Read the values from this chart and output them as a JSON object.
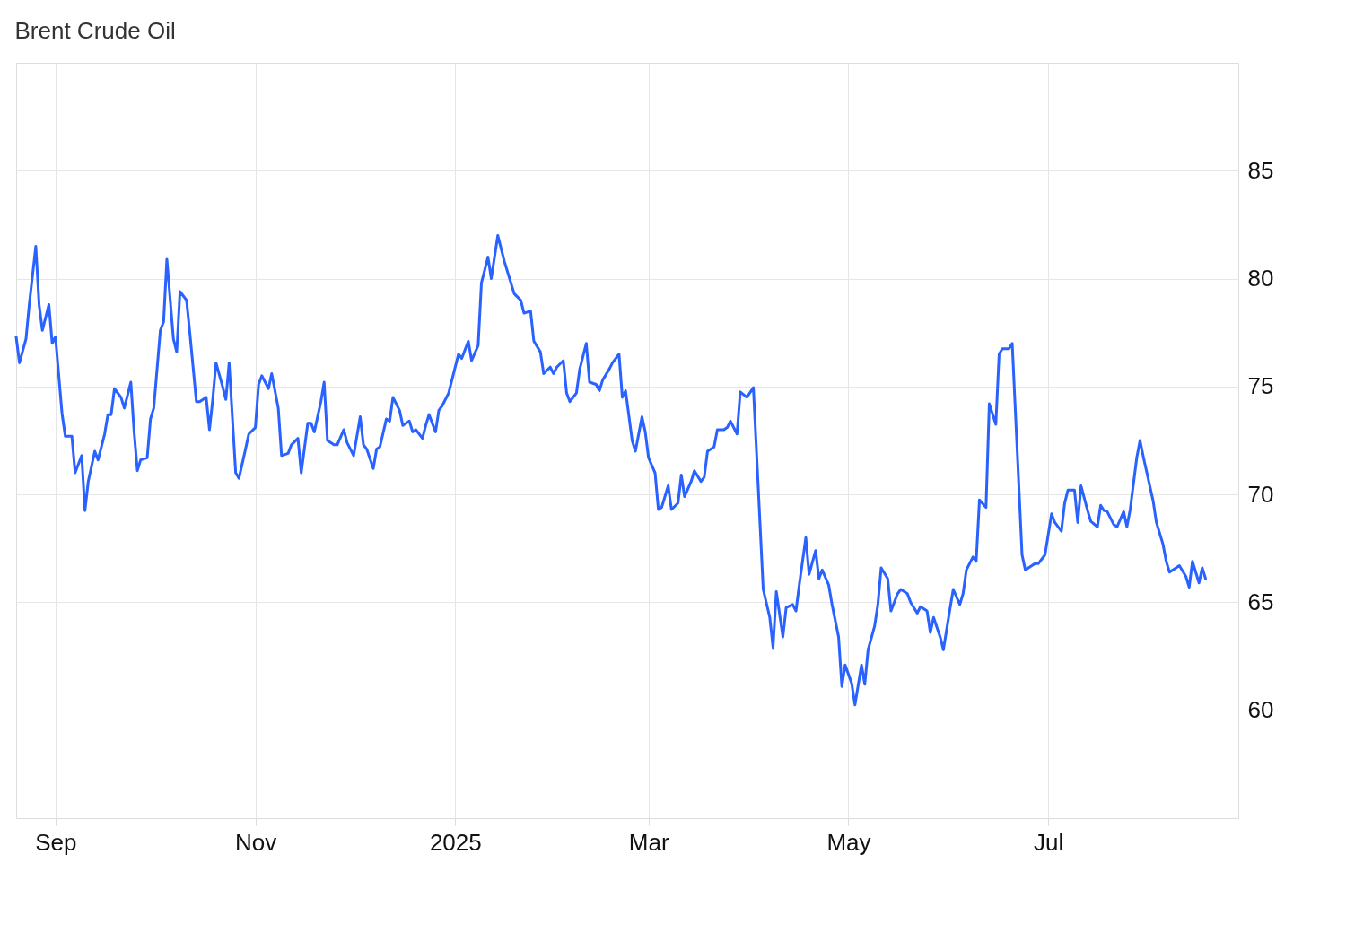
{
  "chart_data": {
    "type": "line",
    "title": "Brent Crude Oil",
    "x": [
      "2024-08-20",
      "2024-08-21",
      "2024-08-23",
      "2024-08-24",
      "2024-08-26",
      "2024-08-27",
      "2024-08-28",
      "2024-08-30",
      "2024-08-31",
      "2024-09-01",
      "2024-09-03",
      "2024-09-04",
      "2024-09-06",
      "2024-09-07",
      "2024-09-09",
      "2024-09-10",
      "2024-09-11",
      "2024-09-13",
      "2024-09-14",
      "2024-09-16",
      "2024-09-17",
      "2024-09-18",
      "2024-09-19",
      "2024-09-21",
      "2024-09-22",
      "2024-09-24",
      "2024-09-25",
      "2024-09-26",
      "2024-09-27",
      "2024-09-29",
      "2024-09-30",
      "2024-10-01",
      "2024-10-03",
      "2024-10-04",
      "2024-10-05",
      "2024-10-07",
      "2024-10-08",
      "2024-10-09",
      "2024-10-11",
      "2024-10-12",
      "2024-10-14",
      "2024-10-15",
      "2024-10-17",
      "2024-10-18",
      "2024-10-19",
      "2024-10-20",
      "2024-10-22",
      "2024-10-23",
      "2024-10-24",
      "2024-10-26",
      "2024-10-27",
      "2024-10-29",
      "2024-10-30",
      "2024-11-01",
      "2024-11-02",
      "2024-11-03",
      "2024-11-05",
      "2024-11-06",
      "2024-11-08",
      "2024-11-09",
      "2024-11-11",
      "2024-11-12",
      "2024-11-14",
      "2024-11-15",
      "2024-11-17",
      "2024-11-18",
      "2024-11-19",
      "2024-11-21",
      "2024-11-22",
      "2024-11-23",
      "2024-11-25",
      "2024-11-26",
      "2024-11-28",
      "2024-11-29",
      "2024-12-01",
      "2024-12-03",
      "2024-12-04",
      "2024-12-05",
      "2024-12-07",
      "2024-12-08",
      "2024-12-09",
      "2024-12-11",
      "2024-12-12",
      "2024-12-13",
      "2024-12-15",
      "2024-12-16",
      "2024-12-18",
      "2024-12-19",
      "2024-12-20",
      "2024-12-22",
      "2024-12-23",
      "2024-12-24",
      "2024-12-26",
      "2024-12-27",
      "2024-12-28",
      "2024-12-30",
      "2025-01-01",
      "2025-01-02",
      "2025-01-03",
      "2025-01-05",
      "2025-01-06",
      "2025-01-08",
      "2025-01-09",
      "2025-01-11",
      "2025-01-12",
      "2025-01-14",
      "2025-01-15",
      "2025-01-16",
      "2025-01-18",
      "2025-01-19",
      "2025-01-21",
      "2025-01-22",
      "2025-01-24",
      "2025-01-25",
      "2025-01-27",
      "2025-01-28",
      "2025-01-30",
      "2025-01-31",
      "2025-02-01",
      "2025-02-03",
      "2025-02-04",
      "2025-02-05",
      "2025-02-07",
      "2025-02-08",
      "2025-02-10",
      "2025-02-11",
      "2025-02-13",
      "2025-02-14",
      "2025-02-15",
      "2025-02-17",
      "2025-02-18",
      "2025-02-20",
      "2025-02-21",
      "2025-02-22",
      "2025-02-24",
      "2025-02-25",
      "2025-02-27",
      "2025-02-28",
      "2025-03-01",
      "2025-03-03",
      "2025-03-04",
      "2025-03-05",
      "2025-03-07",
      "2025-03-08",
      "2025-03-10",
      "2025-03-11",
      "2025-03-12",
      "2025-03-14",
      "2025-03-15",
      "2025-03-17",
      "2025-03-18",
      "2025-03-19",
      "2025-03-21",
      "2025-03-22",
      "2025-03-24",
      "2025-03-25",
      "2025-03-26",
      "2025-03-28",
      "2025-03-29",
      "2025-03-31",
      "2025-04-02",
      "2025-04-05",
      "2025-04-07",
      "2025-04-08",
      "2025-04-09",
      "2025-04-11",
      "2025-04-12",
      "2025-04-14",
      "2025-04-15",
      "2025-04-16",
      "2025-04-18",
      "2025-04-19",
      "2025-04-21",
      "2025-04-22",
      "2025-04-23",
      "2025-04-25",
      "2025-04-26",
      "2025-04-28",
      "2025-04-29",
      "2025-04-30",
      "2025-05-02",
      "2025-05-03",
      "2025-05-05",
      "2025-05-06",
      "2025-05-07",
      "2025-05-09",
      "2025-05-10",
      "2025-05-11",
      "2025-05-13",
      "2025-05-14",
      "2025-05-16",
      "2025-05-17",
      "2025-05-19",
      "2025-05-20",
      "2025-05-22",
      "2025-05-23",
      "2025-05-25",
      "2025-05-26",
      "2025-05-27",
      "2025-05-29",
      "2025-05-30",
      "2025-06-01",
      "2025-06-02",
      "2025-06-04",
      "2025-06-05",
      "2025-06-06",
      "2025-06-08",
      "2025-06-09",
      "2025-06-10",
      "2025-06-12",
      "2025-06-13",
      "2025-06-15",
      "2025-06-16",
      "2025-06-17",
      "2025-06-19",
      "2025-06-20",
      "2025-06-23",
      "2025-06-24",
      "2025-06-26",
      "2025-06-27",
      "2025-06-28",
      "2025-06-30",
      "2025-07-02",
      "2025-07-03",
      "2025-07-05",
      "2025-07-06",
      "2025-07-07",
      "2025-07-09",
      "2025-07-10",
      "2025-07-11",
      "2025-07-13",
      "2025-07-14",
      "2025-07-16",
      "2025-07-17",
      "2025-07-18",
      "2025-07-19",
      "2025-07-21",
      "2025-07-22",
      "2025-07-24",
      "2025-07-25",
      "2025-07-26",
      "2025-07-28",
      "2025-07-29",
      "2025-07-30",
      "2025-08-02",
      "2025-08-03",
      "2025-08-05",
      "2025-08-06",
      "2025-08-07",
      "2025-08-09",
      "2025-08-10",
      "2025-08-12",
      "2025-08-13",
      "2025-08-14",
      "2025-08-16",
      "2025-08-17",
      "2025-08-18"
    ],
    "series": [
      {
        "color": "#2962ff",
        "values": [
          77.3,
          76.1,
          77.2,
          78.8,
          81.5,
          78.8,
          77.6,
          78.8,
          77.0,
          77.3,
          73.75,
          72.7,
          72.7,
          71.0,
          71.8,
          69.25,
          70.6,
          72.0,
          71.6,
          72.8,
          73.7,
          73.7,
          74.9,
          74.5,
          74.0,
          75.2,
          72.9,
          71.1,
          71.6,
          71.7,
          73.5,
          74.0,
          77.6,
          78.0,
          80.9,
          77.2,
          76.6,
          79.4,
          79.0,
          77.5,
          74.3,
          74.3,
          74.5,
          73.0,
          74.4,
          76.1,
          75.0,
          74.4,
          76.1,
          71.0,
          70.75,
          72.1,
          72.8,
          73.1,
          75.1,
          75.5,
          74.9,
          75.6,
          74.0,
          71.8,
          71.9,
          72.3,
          72.6,
          71.0,
          73.3,
          73.3,
          72.9,
          74.3,
          75.2,
          72.5,
          72.3,
          72.3,
          73.0,
          72.4,
          71.8,
          73.6,
          72.3,
          72.1,
          71.2,
          72.1,
          72.2,
          73.5,
          73.4,
          74.5,
          73.9,
          73.2,
          73.4,
          72.9,
          73.0,
          72.6,
          73.2,
          73.7,
          72.9,
          73.9,
          74.1,
          74.7,
          75.9,
          76.5,
          76.3,
          77.1,
          76.2,
          76.9,
          79.8,
          81.0,
          80.0,
          82.0,
          81.4,
          80.8,
          79.8,
          79.3,
          79.0,
          78.4,
          78.5,
          77.1,
          76.6,
          75.6,
          75.9,
          75.6,
          75.9,
          76.2,
          74.7,
          74.3,
          74.7,
          75.8,
          77.0,
          75.2,
          75.1,
          74.8,
          75.3,
          75.8,
          76.1,
          76.5,
          74.5,
          74.8,
          72.5,
          72.0,
          73.6,
          72.9,
          71.7,
          71.0,
          69.3,
          69.4,
          70.4,
          69.3,
          69.6,
          70.9,
          69.9,
          70.6,
          71.1,
          70.6,
          70.8,
          72.0,
          72.2,
          73.0,
          73.0,
          73.1,
          73.4,
          72.8,
          74.75,
          74.5,
          74.95,
          65.6,
          64.3,
          62.9,
          65.5,
          63.4,
          64.75,
          64.9,
          64.6,
          65.8,
          68.0,
          66.3,
          67.4,
          66.1,
          66.5,
          65.8,
          64.9,
          63.4,
          61.1,
          62.1,
          61.25,
          60.25,
          62.1,
          61.2,
          62.8,
          63.9,
          64.9,
          66.6,
          66.1,
          64.6,
          65.4,
          65.6,
          65.4,
          65.0,
          64.5,
          64.8,
          64.6,
          63.6,
          64.3,
          63.4,
          62.8,
          64.7,
          65.6,
          64.9,
          65.4,
          66.5,
          67.1,
          66.9,
          69.75,
          69.4,
          74.2,
          73.25,
          76.5,
          76.75,
          76.75,
          77.0,
          67.2,
          66.5,
          66.7,
          66.8,
          66.8,
          67.2,
          69.1,
          68.7,
          68.3,
          69.6,
          70.2,
          70.2,
          68.7,
          70.4,
          69.25,
          68.75,
          68.5,
          69.5,
          69.25,
          69.2,
          68.6,
          68.5,
          69.2,
          68.5,
          69.3,
          71.7,
          72.5,
          71.75,
          69.7,
          68.7,
          67.7,
          66.9,
          66.4,
          66.6,
          66.7,
          66.2,
          65.7,
          66.9,
          65.9,
          66.6,
          66.1
        ]
      }
    ],
    "xlim": [
      "2024-08-20",
      "2025-08-28"
    ],
    "xticks": [
      {
        "value": "2024-09-01",
        "label": "Sep"
      },
      {
        "value": "2024-11-01",
        "label": "Nov"
      },
      {
        "value": "2025-01-01",
        "label": "2025"
      },
      {
        "value": "2025-03-01",
        "label": "Mar"
      },
      {
        "value": "2025-05-01",
        "label": "May"
      },
      {
        "value": "2025-07-01",
        "label": "Jul"
      }
    ],
    "ylim": [
      55,
      90
    ],
    "yticks": [
      60,
      65,
      70,
      75,
      80,
      85
    ],
    "grid": true,
    "legend": false,
    "marker": "none",
    "line_style": "solid"
  }
}
